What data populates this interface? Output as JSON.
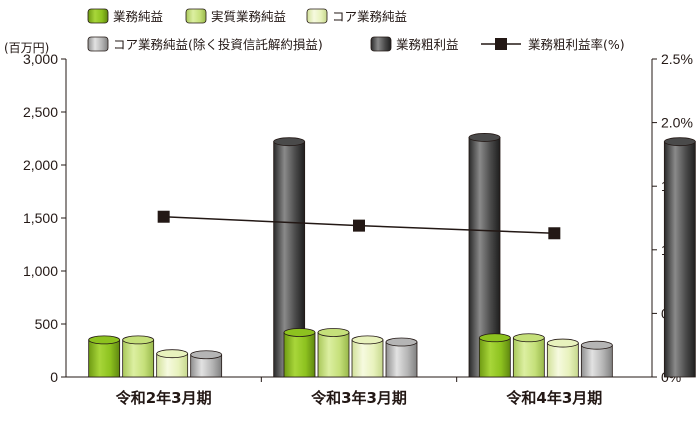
{
  "chart_data": {
    "type": "bar",
    "unit_label": "(百万円)",
    "categories": [
      "令和2年3月期",
      "令和3年3月期",
      "令和4年3月期"
    ],
    "y_left": {
      "min": 0,
      "max": 3000,
      "ticks": [
        "0",
        "500",
        "1,000",
        "1,500",
        "2,000",
        "2,500",
        "3,000"
      ]
    },
    "y_right": {
      "min": 0,
      "max": 2.5,
      "ticks": [
        "0%",
        "0.5%",
        "1.0%",
        "1.5%",
        "2.0%",
        "2.5%"
      ]
    },
    "grid": false,
    "legend_position": "top",
    "series": [
      {
        "name": "業務純益",
        "type": "bar",
        "color": "#8dc21f",
        "values": [
          350,
          420,
          370
        ]
      },
      {
        "name": "実質業務純益",
        "type": "bar",
        "color": "#c5e07a",
        "values": [
          350,
          420,
          370
        ]
      },
      {
        "name": "コア業務純益",
        "type": "bar",
        "color": "#e8f2bd",
        "values": [
          220,
          350,
          320
        ]
      },
      {
        "name": "コア業務純益(除く投資信託解約損益)",
        "type": "bar",
        "color": "#b5b5b5",
        "values": [
          210,
          330,
          300
        ]
      },
      {
        "name": "業務粗利益",
        "type": "bar",
        "color": "#4a4a4a",
        "values": [
          2220,
          2260,
          2220
        ]
      },
      {
        "name": "業務粗利益率(%)",
        "type": "line",
        "axis": "right",
        "color": "#231815",
        "values": [
          1.26,
          1.19,
          1.13
        ]
      }
    ]
  }
}
